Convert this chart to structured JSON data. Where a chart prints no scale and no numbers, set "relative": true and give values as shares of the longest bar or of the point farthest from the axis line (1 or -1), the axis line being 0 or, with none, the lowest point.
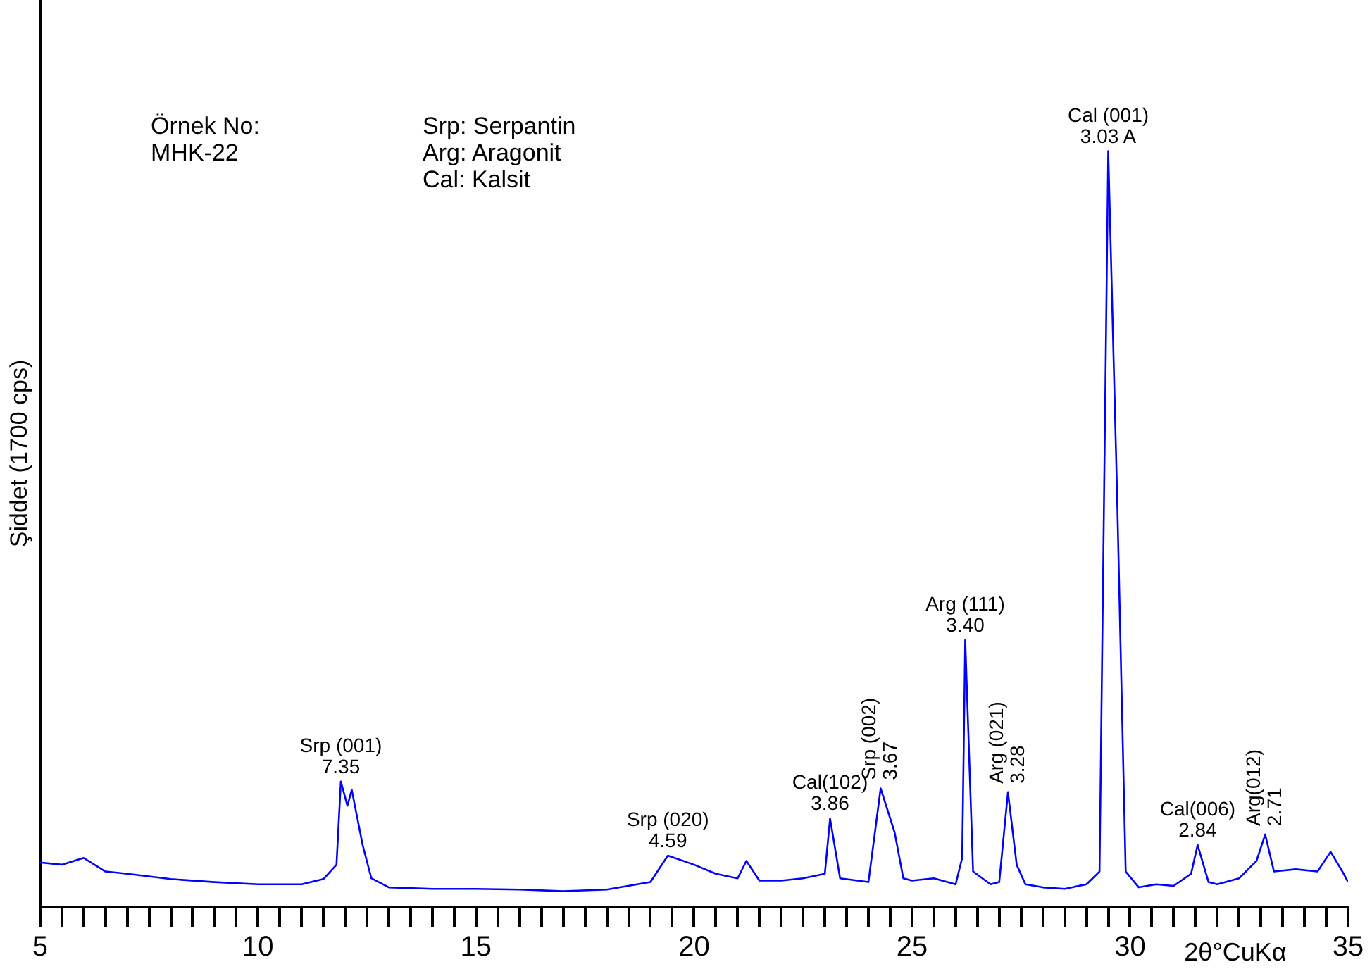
{
  "chart_data": {
    "type": "line",
    "relative": true,
    "xlabel": "2θ°CuKα",
    "ylabel": "Şiddet (1700 cps)",
    "grid": false,
    "legend": false,
    "marker": "none",
    "line_style": "solid",
    "tick_labels": "x",
    "xlim": [
      5,
      35
    ],
    "xticks": [
      5,
      {
        "value": 5.5,
        "label": null
      },
      {
        "value": 6,
        "label": null
      },
      {
        "value": 6.5,
        "label": null
      },
      {
        "value": 7,
        "label": null
      },
      {
        "value": 7.5,
        "label": null
      },
      {
        "value": 8,
        "label": null
      },
      {
        "value": 8.5,
        "label": null
      },
      {
        "value": 9,
        "label": null
      },
      {
        "value": 9.5,
        "label": null
      },
      10,
      {
        "value": 10.5,
        "label": null
      },
      {
        "value": 11,
        "label": null
      },
      {
        "value": 11.5,
        "label": null
      },
      {
        "value": 12,
        "label": null
      },
      {
        "value": 12.5,
        "label": null
      },
      {
        "value": 13,
        "label": null
      },
      {
        "value": 13.5,
        "label": null
      },
      {
        "value": 14,
        "label": null
      },
      {
        "value": 14.5,
        "label": null
      },
      15,
      {
        "value": 15.5,
        "label": null
      },
      {
        "value": 16,
        "label": null
      },
      {
        "value": 16.5,
        "label": null
      },
      {
        "value": 17,
        "label": null
      },
      {
        "value": 17.5,
        "label": null
      },
      {
        "value": 18,
        "label": null
      },
      {
        "value": 18.5,
        "label": null
      },
      {
        "value": 19,
        "label": null
      },
      {
        "value": 19.5,
        "label": null
      },
      20,
      {
        "value": 20.5,
        "label": null
      },
      {
        "value": 21,
        "label": null
      },
      {
        "value": 21.5,
        "label": null
      },
      {
        "value": 22,
        "label": null
      },
      {
        "value": 22.5,
        "label": null
      },
      {
        "value": 23,
        "label": null
      },
      {
        "value": 23.5,
        "label": null
      },
      {
        "value": 24,
        "label": null
      },
      {
        "value": 24.5,
        "label": null
      },
      25,
      {
        "value": 25.5,
        "label": null
      },
      {
        "value": 26,
        "label": null
      },
      {
        "value": 26.5,
        "label": null
      },
      {
        "value": 27,
        "label": null
      },
      {
        "value": 27.5,
        "label": null
      },
      {
        "value": 28,
        "label": null
      },
      {
        "value": 28.5,
        "label": null
      },
      {
        "value": 29,
        "label": null
      },
      {
        "value": 29.5,
        "label": null
      },
      30,
      {
        "value": 30.5,
        "label": null
      },
      {
        "value": 31,
        "label": null
      },
      {
        "value": 31.5,
        "label": null
      },
      {
        "value": 32,
        "label": null
      },
      {
        "value": 32.5,
        "label": null
      },
      {
        "value": 33,
        "label": null
      },
      {
        "value": 33.5,
        "label": null
      },
      {
        "value": 34,
        "label": null
      },
      {
        "value": 34.5,
        "label": null
      },
      35
    ],
    "series": [
      {
        "color": "#0000ff",
        "x": [
          5,
          5.5,
          6,
          6.5,
          7,
          8,
          9,
          10,
          11,
          11.5,
          11.8,
          11.9,
          12.05,
          12.15,
          12.4,
          12.6,
          13,
          14,
          15,
          16,
          17,
          18,
          19,
          19.4,
          20,
          20.5,
          21,
          21.2,
          21.5,
          22,
          22.5,
          23,
          23.12,
          23.35,
          24,
          24.15,
          24.28,
          24.6,
          24.8,
          25,
          25.5,
          26,
          26.15,
          26.22,
          26.4,
          26.8,
          27,
          27.2,
          27.4,
          27.6,
          28,
          28.5,
          29,
          29.3,
          29.5,
          29.7,
          29.9,
          30.2,
          30.6,
          31,
          31.4,
          31.55,
          31.8,
          32,
          32.5,
          32.9,
          33.1,
          33.3,
          33.8,
          34.3,
          34.6,
          34.9,
          35
        ],
        "values": [
          0.059,
          0.056,
          0.065,
          0.047,
          0.044,
          0.037,
          0.033,
          0.03,
          0.03,
          0.037,
          0.056,
          0.166,
          0.134,
          0.155,
          0.082,
          0.038,
          0.026,
          0.024,
          0.024,
          0.023,
          0.021,
          0.023,
          0.033,
          0.068,
          0.056,
          0.044,
          0.038,
          0.061,
          0.035,
          0.035,
          0.038,
          0.044,
          0.117,
          0.038,
          0.033,
          0.099,
          0.157,
          0.099,
          0.038,
          0.035,
          0.038,
          0.03,
          0.065,
          0.353,
          0.047,
          0.03,
          0.033,
          0.152,
          0.056,
          0.03,
          0.026,
          0.024,
          0.03,
          0.047,
          1,
          0.553,
          0.047,
          0.026,
          0.03,
          0.028,
          0.044,
          0.082,
          0.033,
          0.03,
          0.038,
          0.061,
          0.096,
          0.047,
          0.05,
          0.047,
          0.073,
          0.044,
          0.033
        ]
      }
    ],
    "annotations": [
      "Örnek No:\nMHK-22",
      "Srp: Serpantin\nArg: Aragonit\nCal: Kalsit",
      {
        "text": "Srp (001)\n7.35",
        "x": 11.9,
        "y": 0.166
      },
      {
        "text": "Srp (020)\n4.59",
        "x": 19.4,
        "y": 0.068
      },
      {
        "text": "Cal(102)\n3.86",
        "x": 23.12,
        "y": 0.117
      },
      {
        "text": "Srp (002)\n3.67",
        "x": 24.28,
        "y": 0.157
      },
      {
        "text": "Arg (111)\n3.40",
        "x": 26.22,
        "y": 0.353
      },
      {
        "text": "Arg (021)\n3.28",
        "x": 27.2,
        "y": 0.152
      },
      {
        "text": "Cal (001)\n3.03 A",
        "x": 29.5,
        "y": 1
      },
      {
        "text": "Cal(006)\n2.84",
        "x": 31.55,
        "y": 0.082
      },
      {
        "text": "Arg(012)\n2.71",
        "x": 33.1,
        "y": 0.096
      }
    ]
  }
}
